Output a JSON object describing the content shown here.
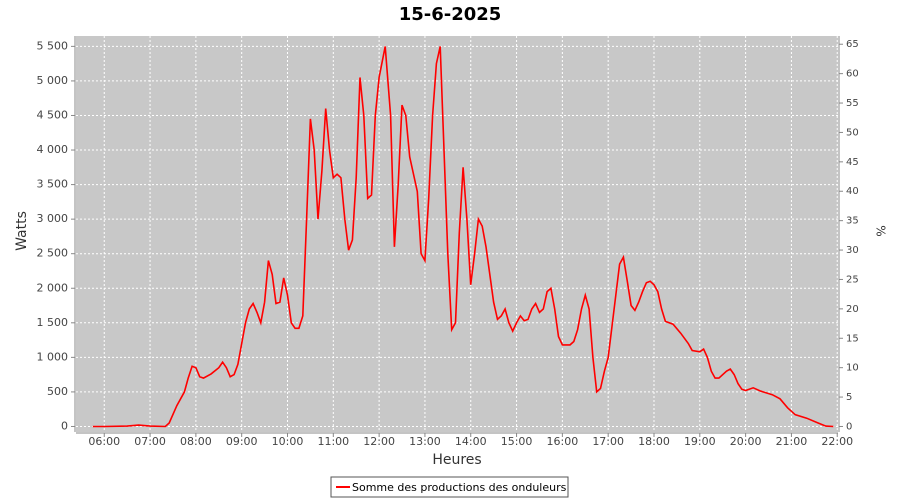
{
  "chart_data": {
    "type": "line",
    "title": "15-6-2025",
    "x_label": "Heures",
    "y_label": "Watts",
    "y2_label": "%",
    "x": [
      "05:45",
      "06:00",
      "06:30",
      "06:45",
      "07:00",
      "07:20",
      "07:25",
      "07:35",
      "07:45",
      "07:50",
      "07:55",
      "08:00",
      "08:05",
      "08:10",
      "08:20",
      "08:30",
      "08:35",
      "08:40",
      "08:45",
      "08:50",
      "08:55",
      "09:00",
      "09:05",
      "09:10",
      "09:15",
      "09:20",
      "09:25",
      "09:30",
      "09:35",
      "09:40",
      "09:45",
      "09:50",
      "09:55",
      "10:00",
      "10:05",
      "10:10",
      "10:15",
      "10:20",
      "10:25",
      "10:30",
      "10:35",
      "10:40",
      "10:45",
      "10:50",
      "10:55",
      "11:00",
      "11:05",
      "11:10",
      "11:15",
      "11:20",
      "11:25",
      "11:30",
      "11:35",
      "11:40",
      "11:45",
      "11:50",
      "11:55",
      "12:00",
      "12:08",
      "12:15",
      "12:20",
      "12:25",
      "12:30",
      "12:35",
      "12:40",
      "12:50",
      "12:55",
      "13:00",
      "13:05",
      "13:10",
      "13:15",
      "13:20",
      "13:25",
      "13:30",
      "13:35",
      "13:40",
      "13:45",
      "13:50",
      "13:55",
      "14:00",
      "14:05",
      "14:10",
      "14:15",
      "14:20",
      "14:25",
      "14:30",
      "14:35",
      "14:40",
      "14:45",
      "14:50",
      "14:55",
      "15:00",
      "15:05",
      "15:10",
      "15:15",
      "15:20",
      "15:25",
      "15:30",
      "15:35",
      "15:40",
      "15:45",
      "15:50",
      "15:55",
      "16:00",
      "16:10",
      "16:15",
      "16:20",
      "16:25",
      "16:30",
      "16:35",
      "16:40",
      "16:45",
      "16:50",
      "16:55",
      "17:00",
      "17:05",
      "17:10",
      "17:15",
      "17:20",
      "17:25",
      "17:30",
      "17:35",
      "17:40",
      "17:45",
      "17:50",
      "17:55",
      "18:00",
      "18:05",
      "18:10",
      "18:15",
      "18:25",
      "18:35",
      "18:45",
      "18:50",
      "19:00",
      "19:05",
      "19:10",
      "19:15",
      "19:20",
      "19:25",
      "19:35",
      "19:40",
      "19:45",
      "19:50",
      "19:55",
      "20:00",
      "20:10",
      "20:20",
      "20:35",
      "20:45",
      "20:55",
      "21:05",
      "21:20",
      "21:35",
      "21:45",
      "21:55"
    ],
    "series": [
      {
        "name": "Somme des productions des onduleurs",
        "color": "#ff0000",
        "values": [
          0,
          0,
          5,
          20,
          5,
          0,
          50,
          300,
          500,
          700,
          870,
          850,
          720,
          700,
          760,
          850,
          930,
          850,
          720,
          750,
          900,
          1200,
          1500,
          1700,
          1780,
          1650,
          1500,
          1800,
          2400,
          2200,
          1780,
          1800,
          2150,
          1900,
          1500,
          1420,
          1420,
          1600,
          3000,
          4450,
          4000,
          3000,
          3700,
          4600,
          4000,
          3600,
          3650,
          3600,
          3000,
          2550,
          2700,
          3600,
          5050,
          4500,
          3300,
          3350,
          4500,
          5050,
          5500,
          4500,
          2600,
          3500,
          4650,
          4500,
          3900,
          3400,
          2500,
          2400,
          3300,
          4500,
          5250,
          5500,
          4000,
          2500,
          1400,
          1500,
          2800,
          3750,
          3000,
          2050,
          2500,
          3000,
          2900,
          2600,
          2200,
          1800,
          1550,
          1600,
          1700,
          1500,
          1380,
          1500,
          1600,
          1530,
          1550,
          1700,
          1780,
          1650,
          1700,
          1950,
          2000,
          1700,
          1300,
          1180,
          1180,
          1230,
          1400,
          1700,
          1900,
          1700,
          1000,
          500,
          550,
          800,
          1000,
          1450,
          1900,
          2350,
          2450,
          2100,
          1750,
          1680,
          1800,
          1950,
          2080,
          2100,
          2050,
          1950,
          1700,
          1520,
          1480,
          1350,
          1200,
          1100,
          1080,
          1120,
          1000,
          800,
          700,
          700,
          800,
          830,
          750,
          620,
          540,
          520,
          560,
          510,
          460,
          400,
          270,
          170,
          120,
          50,
          5,
          0
        ]
      }
    ],
    "xlim": [
      "05:23",
      "22:01"
    ],
    "xticks": [
      "06:00",
      "07:00",
      "08:00",
      "09:00",
      "10:00",
      "11:00",
      "12:00",
      "13:00",
      "14:00",
      "15:00",
      "16:00",
      "17:00",
      "18:00",
      "19:00",
      "20:00",
      "21:00",
      "22:00"
    ],
    "ylim": [
      -80,
      5650
    ],
    "yticks": [
      0,
      500,
      {
        "value": 1000,
        "label": "1 000"
      },
      {
        "value": 1500,
        "label": "1 500"
      },
      {
        "value": 2000,
        "label": "2 000"
      },
      {
        "value": 2500,
        "label": "2 500"
      },
      {
        "value": 3000,
        "label": "3 000"
      },
      {
        "value": 3500,
        "label": "3 500"
      },
      {
        "value": 4000,
        "label": "4 000"
      },
      {
        "value": 4500,
        "label": "4 500"
      },
      {
        "value": 5000,
        "label": "5 000"
      },
      {
        "value": 5500,
        "label": "5 500"
      }
    ],
    "y2lim": [
      -0.94,
      66.4
    ],
    "y2ticks": [
      0,
      5,
      10,
      15,
      20,
      25,
      30,
      35,
      40,
      45,
      50,
      55,
      60,
      65
    ],
    "grid": true,
    "legend": "bottom"
  }
}
